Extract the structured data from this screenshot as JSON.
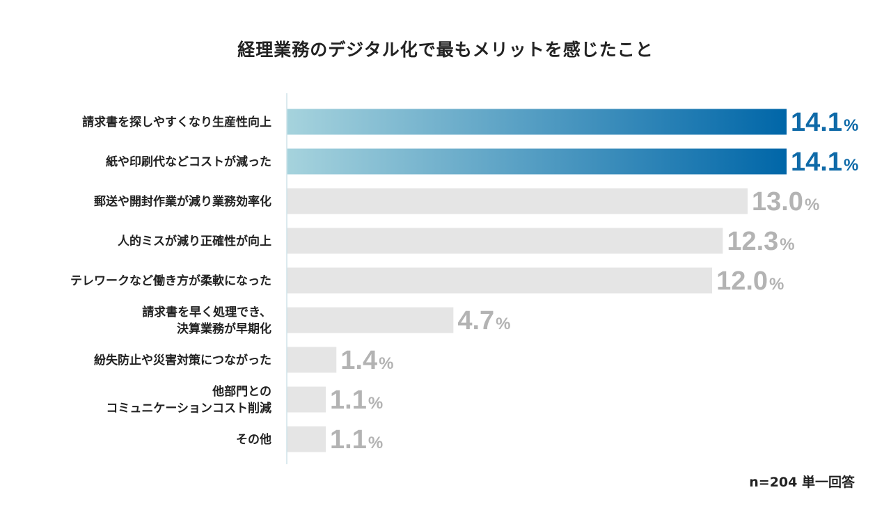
{
  "chart_data": {
    "type": "bar",
    "orientation": "horizontal",
    "title": "経理業務のデジタル化で最もメリットを感じたこと",
    "categories": [
      [
        "請求書を探しやすくなり生産性向上"
      ],
      [
        "紙や印刷代などコストが減った"
      ],
      [
        "郵送や開封作業が減り業務効率化"
      ],
      [
        "人的ミスが減り正確性が向上"
      ],
      [
        "テレワークなど働き方が柔軟になった"
      ],
      [
        "請求書を早く処理でき、",
        "決算業務が早期化"
      ],
      [
        "紛失防止や災害対策につながった"
      ],
      [
        "他部門との",
        "コミュニケーションコスト削減"
      ],
      [
        "その他"
      ]
    ],
    "values": [
      14.1,
      14.1,
      13.0,
      12.3,
      12.0,
      4.7,
      1.4,
      1.1,
      1.1
    ],
    "value_labels": [
      "14.1",
      "14.1",
      "13.0",
      "12.3",
      "12.0",
      "4.7",
      "1.4",
      "1.1",
      "1.1"
    ],
    "unit": "%",
    "highlighted": [
      true,
      true,
      false,
      false,
      false,
      false,
      false,
      false,
      false
    ],
    "xlim": [
      0,
      14.1
    ],
    "xlabel": "",
    "ylabel": "",
    "grid": false,
    "note": "n=204 単一回答"
  },
  "colors": {
    "highlight_start": "#a6d3dd",
    "highlight_end": "#0066a8",
    "highlight_text": "#0f6aa8",
    "normal_bar": "#e5e5e5",
    "normal_text": "#b3b3b3",
    "axis_line": "#cfe4ea",
    "label_text": "#222222"
  }
}
